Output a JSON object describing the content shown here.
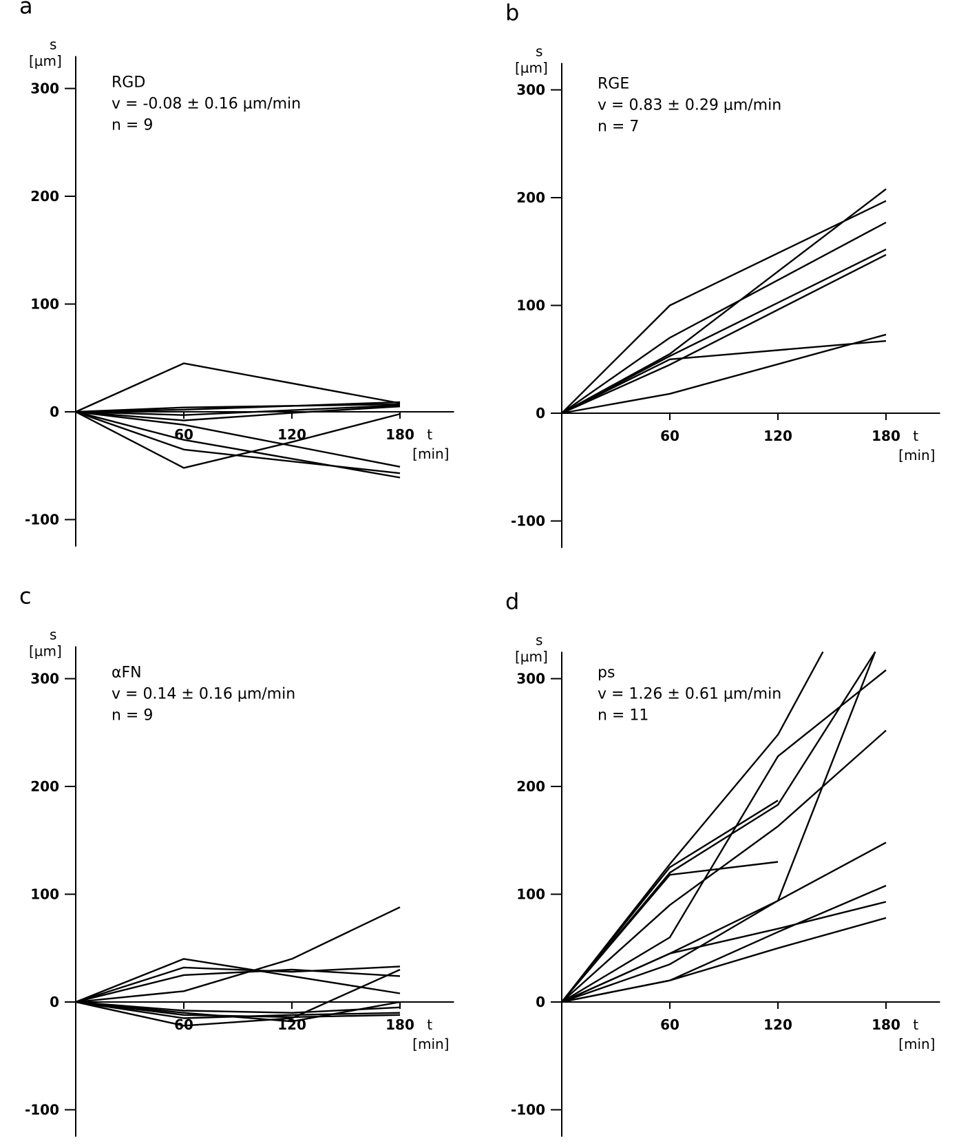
{
  "chart_data": [
    {
      "type": "line",
      "panel_label": "a",
      "ylabel": "s",
      "yunit": "[µm]",
      "xlabel": "t",
      "xunit": "[min]",
      "ylim": [
        -125,
        330
      ],
      "xlim": [
        0,
        210
      ],
      "yticks": [
        300,
        200,
        100,
        0,
        -100
      ],
      "xticks": [
        60,
        120,
        180
      ],
      "annotation": [
        "RGD",
        "v = -0.08 ± 0.16 µm/min",
        "n = 9"
      ],
      "grid": false,
      "series": [
        {
          "points": [
            [
              0,
              0
            ],
            [
              60,
              45
            ],
            [
              180,
              8
            ]
          ]
        },
        {
          "points": [
            [
              0,
              0
            ],
            [
              60,
              4
            ],
            [
              180,
              7
            ]
          ]
        },
        {
          "points": [
            [
              0,
              0
            ],
            [
              60,
              -3
            ],
            [
              180,
              6
            ]
          ]
        },
        {
          "points": [
            [
              0,
              0
            ],
            [
              60,
              -8
            ],
            [
              120,
              -1
            ],
            [
              180,
              5
            ]
          ]
        },
        {
          "points": [
            [
              0,
              0
            ],
            [
              60,
              2
            ],
            [
              180,
              9
            ]
          ]
        },
        {
          "points": [
            [
              0,
              0
            ],
            [
              60,
              -26
            ],
            [
              180,
              -61
            ]
          ]
        },
        {
          "points": [
            [
              0,
              0
            ],
            [
              60,
              -35
            ],
            [
              180,
              -57
            ]
          ]
        },
        {
          "points": [
            [
              0,
              0
            ],
            [
              60,
              -52
            ],
            [
              120,
              -28
            ],
            [
              180,
              -2
            ]
          ]
        },
        {
          "points": [
            [
              0,
              0
            ],
            [
              60,
              -12
            ],
            [
              180,
              -51
            ]
          ]
        }
      ]
    },
    {
      "type": "line",
      "panel_label": "b",
      "ylabel": "s",
      "yunit": "[µm]",
      "xlabel": "t",
      "xunit": "[min]",
      "ylim": [
        -125,
        325
      ],
      "xlim": [
        0,
        210
      ],
      "yticks": [
        300,
        200,
        100,
        0,
        -100
      ],
      "xticks": [
        60,
        120,
        180
      ],
      "annotation": [
        "RGE",
        "v = 0.83 ± 0.29 µm/min",
        "n = 7"
      ],
      "grid": false,
      "series": [
        {
          "points": [
            [
              0,
              0
            ],
            [
              60,
              100
            ],
            [
              180,
              197
            ]
          ]
        },
        {
          "points": [
            [
              0,
              0
            ],
            [
              60,
              55
            ],
            [
              180,
              208
            ]
          ]
        },
        {
          "points": [
            [
              0,
              0
            ],
            [
              60,
              70
            ],
            [
              180,
              177
            ]
          ]
        },
        {
          "points": [
            [
              0,
              0
            ],
            [
              60,
              53
            ],
            [
              180,
              152
            ]
          ]
        },
        {
          "points": [
            [
              0,
              0
            ],
            [
              60,
              45
            ],
            [
              180,
              147
            ]
          ]
        },
        {
          "points": [
            [
              0,
              0
            ],
            [
              60,
              50
            ],
            [
              180,
              67
            ]
          ]
        },
        {
          "points": [
            [
              0,
              0
            ],
            [
              60,
              18
            ],
            [
              180,
              73
            ]
          ]
        }
      ]
    },
    {
      "type": "line",
      "panel_label": "c",
      "ylabel": "s",
      "yunit": "[µm]",
      "xlabel": "t",
      "xunit": "[min]",
      "ylim": [
        -125,
        330
      ],
      "xlim": [
        0,
        210
      ],
      "yticks": [
        300,
        200,
        100,
        0,
        -100
      ],
      "xticks": [
        60,
        120,
        180
      ],
      "annotation": [
        "αFN",
        "v = 0.14 ± 0.16 µm/min",
        "n = 9"
      ],
      "grid": false,
      "series": [
        {
          "points": [
            [
              0,
              0
            ],
            [
              60,
              40
            ],
            [
              180,
              8
            ]
          ]
        },
        {
          "points": [
            [
              0,
              0
            ],
            [
              60,
              10
            ],
            [
              120,
              40
            ],
            [
              180,
              88
            ]
          ]
        },
        {
          "points": [
            [
              0,
              0
            ],
            [
              60,
              32
            ],
            [
              120,
              28
            ],
            [
              180,
              33
            ]
          ]
        },
        {
          "points": [
            [
              0,
              0
            ],
            [
              60,
              25
            ],
            [
              120,
              30
            ],
            [
              180,
              24
            ]
          ]
        },
        {
          "points": [
            [
              0,
              0
            ],
            [
              60,
              -8
            ],
            [
              120,
              -10
            ],
            [
              180,
              -5
            ]
          ]
        },
        {
          "points": [
            [
              0,
              0
            ],
            [
              60,
              -15
            ],
            [
              120,
              -12
            ],
            [
              180,
              -10
            ]
          ]
        },
        {
          "points": [
            [
              0,
              0
            ],
            [
              60,
              -22
            ],
            [
              120,
              -15
            ],
            [
              180,
              30
            ]
          ]
        },
        {
          "points": [
            [
              0,
              0
            ],
            [
              60,
              -10
            ],
            [
              120,
              -18
            ],
            [
              180,
              0
            ]
          ]
        },
        {
          "points": [
            [
              0,
              0
            ],
            [
              60,
              -12
            ],
            [
              120,
              -14
            ],
            [
              180,
              -12
            ]
          ]
        }
      ]
    },
    {
      "type": "line",
      "panel_label": "d",
      "ylabel": "s",
      "yunit": "[µm]",
      "xlabel": "t",
      "xunit": "[min]",
      "ylim": [
        -125,
        325
      ],
      "xlim": [
        0,
        210
      ],
      "yticks": [
        300,
        200,
        100,
        0,
        -100
      ],
      "xticks": [
        60,
        120,
        180
      ],
      "annotation": [
        "ps",
        "v = 1.26 ± 0.61 µm/min",
        "n = 11"
      ],
      "grid": false,
      "series": [
        {
          "points": [
            [
              0,
              0
            ],
            [
              60,
              128
            ],
            [
              120,
              248
            ],
            [
              145,
              325
            ]
          ]
        },
        {
          "points": [
            [
              0,
              0
            ],
            [
              60,
              120
            ],
            [
              120,
              183
            ],
            [
              174,
              325
            ]
          ]
        },
        {
          "points": [
            [
              0,
              0
            ],
            [
              60,
              118
            ],
            [
              120,
              130
            ]
          ]
        },
        {
          "points": [
            [
              0,
              0
            ],
            [
              60,
              125
            ],
            [
              120,
              187
            ]
          ]
        },
        {
          "points": [
            [
              0,
              0
            ],
            [
              60,
              60
            ],
            [
              120,
              228
            ],
            [
              180,
              308
            ]
          ]
        },
        {
          "points": [
            [
              0,
              0
            ],
            [
              60,
              90
            ],
            [
              120,
              163
            ],
            [
              180,
              252
            ]
          ]
        },
        {
          "points": [
            [
              0,
              0
            ],
            [
              60,
              45
            ],
            [
              120,
              94
            ],
            [
              174,
              325
            ]
          ]
        },
        {
          "points": [
            [
              0,
              0
            ],
            [
              60,
              35
            ],
            [
              120,
              94
            ],
            [
              180,
              148
            ]
          ]
        },
        {
          "points": [
            [
              0,
              0
            ],
            [
              60,
              45
            ],
            [
              120,
              68
            ],
            [
              180,
              93
            ]
          ]
        },
        {
          "points": [
            [
              0,
              0
            ],
            [
              60,
              20
            ],
            [
              120,
              65
            ],
            [
              180,
              108
            ]
          ]
        },
        {
          "points": [
            [
              0,
              0
            ],
            [
              60,
              20
            ],
            [
              120,
              50
            ],
            [
              180,
              78
            ]
          ]
        }
      ]
    }
  ]
}
